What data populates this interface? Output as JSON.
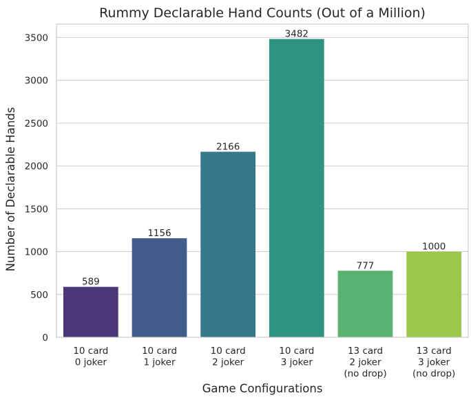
{
  "chart_data": {
    "type": "bar",
    "title": "Rummy Declarable Hand Counts (Out of a Million)",
    "xlabel": "Game Configurations",
    "ylabel": "Number of Declarable Hands",
    "categories": [
      [
        "10 card",
        "0 joker"
      ],
      [
        "10 card",
        "1 joker"
      ],
      [
        "10 card",
        "2 joker"
      ],
      [
        "10 card",
        "3 joker"
      ],
      [
        "13 card",
        "2 joker",
        "(no drop)"
      ],
      [
        "13 card",
        "3 joker",
        "(no drop)"
      ]
    ],
    "values": [
      589,
      1156,
      2166,
      3482,
      777,
      1000
    ],
    "data_labels": [
      "589",
      "1156",
      "2166",
      "3482",
      "777",
      "1000"
    ],
    "colors": [
      "#4a3878",
      "#405d8c",
      "#34798a",
      "#2e9380",
      "#59b272",
      "#9bc74b"
    ],
    "ylim": [
      0,
      3656
    ],
    "yticks": [
      0,
      500,
      1000,
      1500,
      2000,
      2500,
      3000,
      3500
    ],
    "grid": true,
    "legend": "none"
  }
}
